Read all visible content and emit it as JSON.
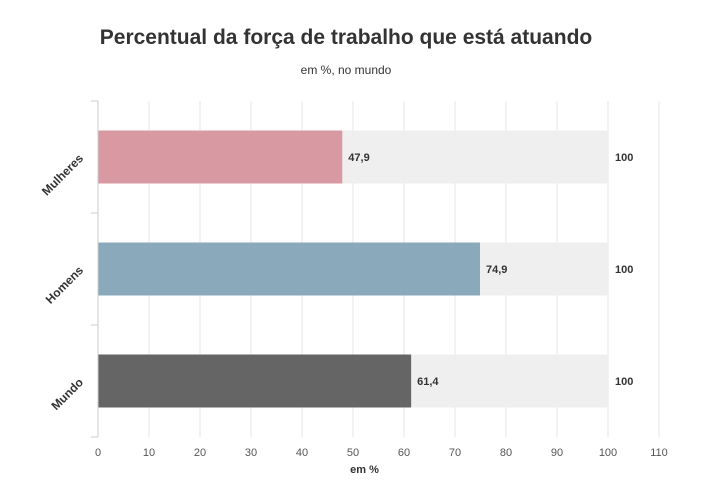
{
  "chart_data": {
    "type": "bar",
    "orientation": "horizontal",
    "title": "Percentual da força de trabalho que está atuando",
    "subtitle": "em %, no mundo",
    "xlabel": "em %",
    "ylabel": "",
    "xlim": [
      0,
      110
    ],
    "x_ticks": [
      0,
      10,
      20,
      30,
      40,
      50,
      60,
      70,
      80,
      90,
      100,
      110
    ],
    "categories": [
      "Mulheres",
      "Homens",
      "Mundo"
    ],
    "series": [
      {
        "values": [
          47.9,
          74.9,
          61.4
        ],
        "labels": [
          "47,9",
          "74,9",
          "61,4"
        ],
        "colors": [
          "#d999a2",
          "#8aaabb",
          "#656565"
        ]
      },
      {
        "values": [
          100,
          100,
          100
        ],
        "labels": [
          "100",
          "100",
          "100"
        ],
        "color": "#efefef"
      }
    ],
    "grid": true,
    "legend": "none"
  }
}
